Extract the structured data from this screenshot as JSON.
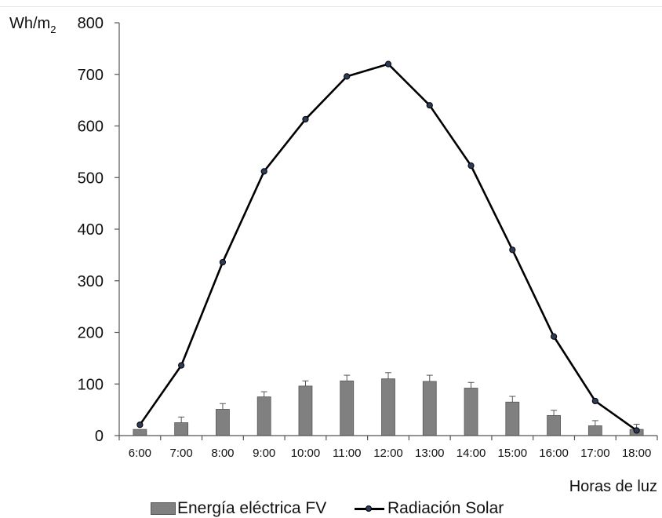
{
  "chart_data": {
    "type": "bar+line",
    "title": "",
    "ylabel_main": "Wh/m",
    "ylabel_sub": "2",
    "xlabel": "Horas de luz",
    "ylim": [
      0,
      800
    ],
    "yticks": [
      0,
      100,
      200,
      300,
      400,
      500,
      600,
      700,
      800
    ],
    "categories": [
      "6:00",
      "7:00",
      "8:00",
      "9:00",
      "10:00",
      "11:00",
      "12:00",
      "13:00",
      "14:00",
      "15:00",
      "16:00",
      "17:00",
      "18:00"
    ],
    "series": [
      {
        "name": "Energía eléctrica FV",
        "type": "bar",
        "color": "#808080",
        "values": [
          12,
          25,
          51,
          75,
          96,
          106,
          110,
          105,
          92,
          65,
          39,
          19,
          12
        ],
        "error": [
          0,
          11,
          11,
          10,
          10,
          11,
          12,
          12,
          11,
          11,
          10,
          10,
          10
        ]
      },
      {
        "name": "Radiación Solar",
        "type": "line",
        "color": "#000000",
        "marker_color": "#2a3c5a",
        "values": [
          21,
          136,
          336,
          512,
          613,
          696,
          720,
          640,
          523,
          360,
          192,
          67,
          10
        ]
      }
    ],
    "legend_position": "bottom",
    "grid": false
  }
}
